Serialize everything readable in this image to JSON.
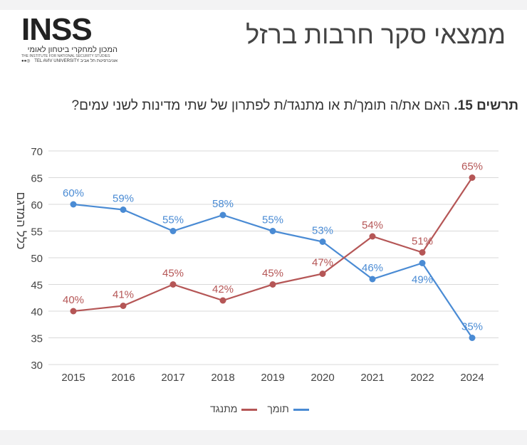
{
  "header": {
    "title": "ממצאי סקר חרבות ברזל",
    "logo": {
      "name": "INSS",
      "hebrew": "המכון למחקרי ביטחון לאומי",
      "english": "THE INSTITUTE FOR NATIONAL SECURITY STUDIES",
      "university": "TEL AVIV UNIVERSITY אוניברסיטת תל אביב"
    }
  },
  "question": {
    "label": "תרשים 15.",
    "text": "האם את/ה תומך/ת או מתנגד/ת לפתרון של שתי מדינות לשני עמים?"
  },
  "chart_data": {
    "type": "line",
    "ylabel": "כלל המדגם",
    "ylim": [
      30,
      70
    ],
    "yticks": [
      30,
      35,
      40,
      45,
      50,
      55,
      60,
      65,
      70
    ],
    "grid": true,
    "legend": "bottom",
    "categories": [
      "2015",
      "2016",
      "2017",
      "2018",
      "2019",
      "2020",
      "2021",
      "2022",
      "2024"
    ],
    "series": [
      {
        "name": "תומך",
        "color": "#4a8bd4",
        "values": [
          60,
          59,
          55,
          58,
          55,
          53,
          46,
          49,
          35
        ],
        "labels": [
          "60%",
          "59%",
          "55%",
          "58%",
          "55%",
          "53%",
          "46%",
          "49%",
          "35%"
        ]
      },
      {
        "name": "מתנגד",
        "color": "#b55656",
        "values": [
          40,
          41,
          45,
          42,
          45,
          47,
          54,
          51,
          65
        ],
        "labels": [
          "40%",
          "41%",
          "45%",
          "42%",
          "45%",
          "47%",
          "54%",
          "51%",
          "65%"
        ]
      }
    ]
  }
}
